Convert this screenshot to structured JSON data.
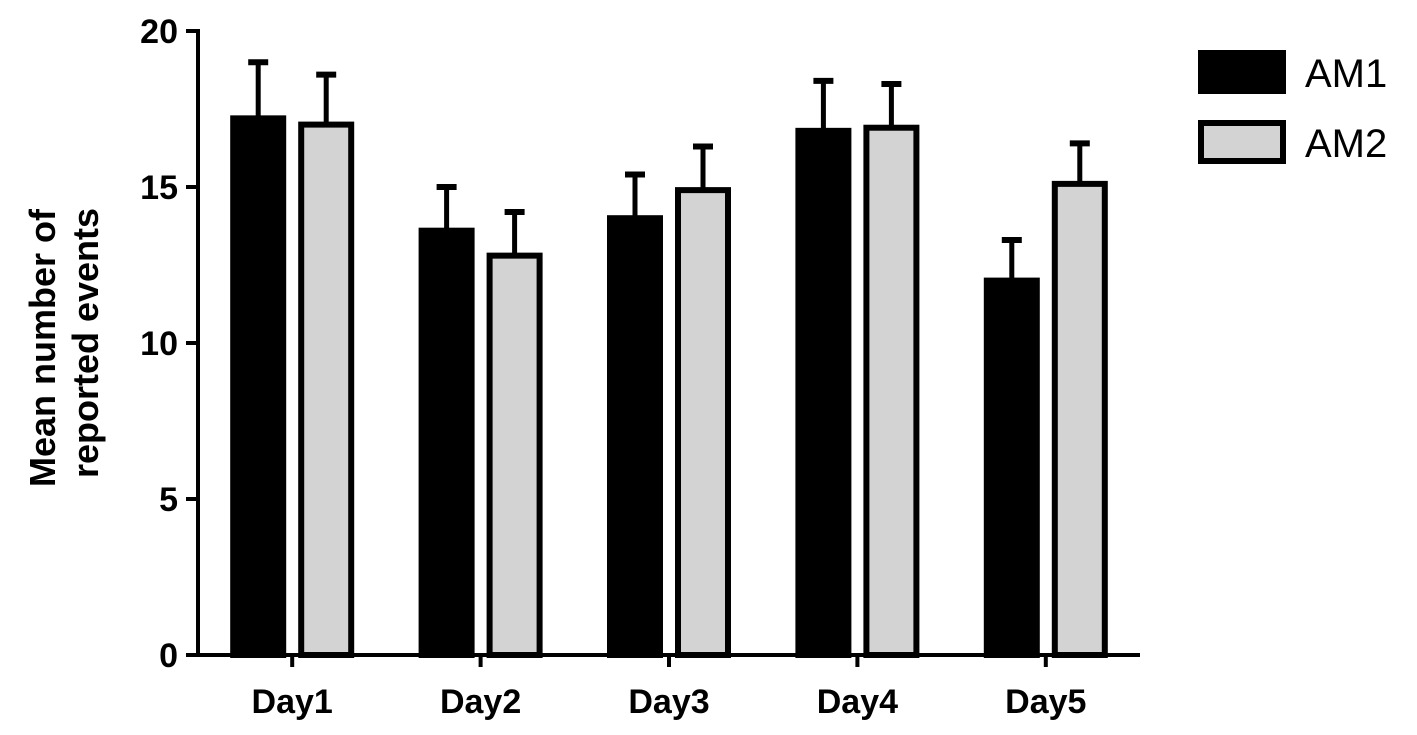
{
  "chart_data": {
    "type": "bar",
    "categories": [
      "Day1",
      "Day2",
      "Day3",
      "Day4",
      "Day5"
    ],
    "series": [
      {
        "name": "AM1",
        "values": [
          17.2,
          13.6,
          14.0,
          16.8,
          12.0
        ],
        "error": [
          1.8,
          1.4,
          1.4,
          1.6,
          1.3
        ],
        "color": "#000000"
      },
      {
        "name": "AM2",
        "values": [
          17.0,
          12.8,
          14.9,
          16.9,
          15.1
        ],
        "error": [
          1.6,
          1.4,
          1.4,
          1.4,
          1.3
        ],
        "color": "#d3d3d3"
      }
    ],
    "ylabel_lines": [
      "Mean number of",
      "reported events"
    ],
    "ylim": [
      0,
      20
    ],
    "yticks": [
      "0",
      "5",
      "10",
      "15",
      "20"
    ],
    "ytick_values": [
      0,
      5,
      10,
      15,
      20
    ],
    "legend_position": "top-right",
    "grid": false
  }
}
